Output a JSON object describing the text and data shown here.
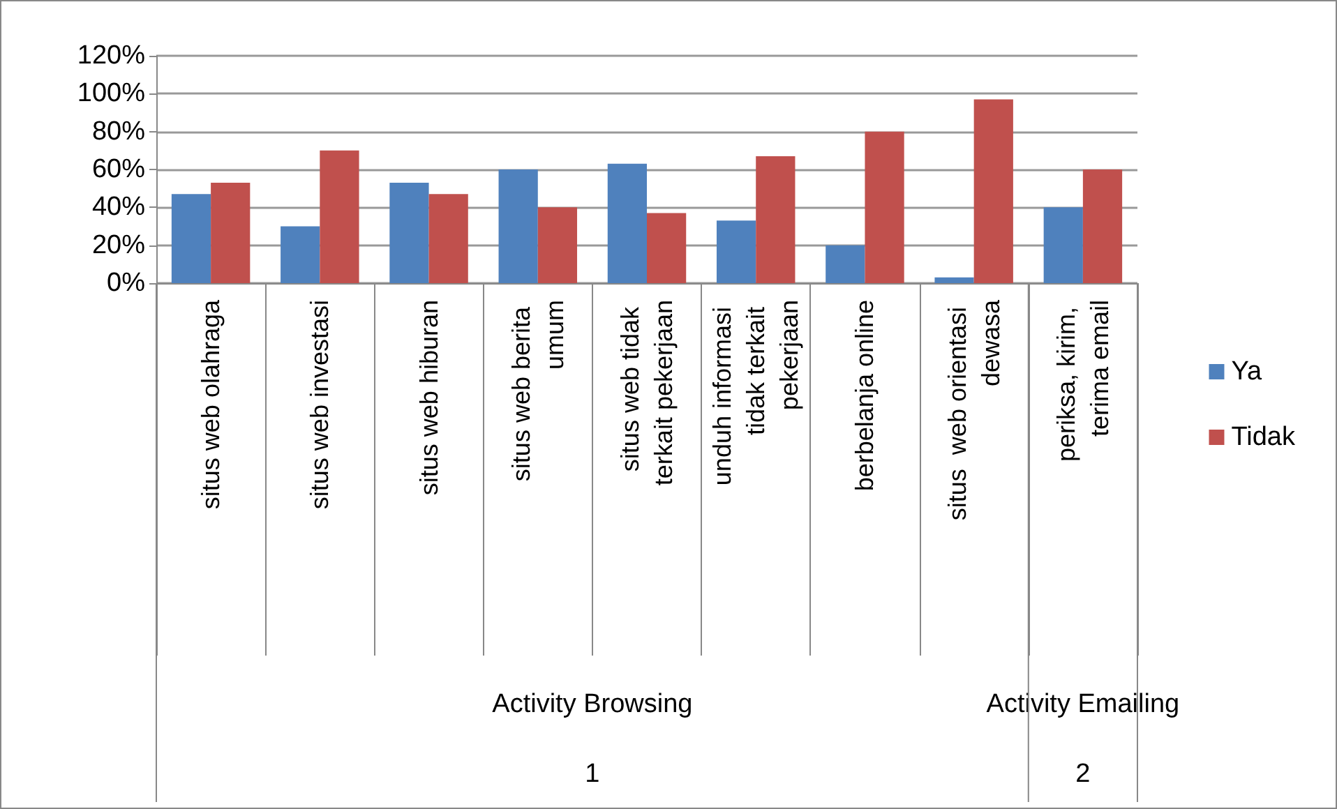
{
  "chart_data": {
    "type": "bar",
    "categories": [
      "situs web olahraga",
      "situs web investasi",
      "situs web hiburan",
      "situs web berita umum",
      "situs web tidak terkait pekerjaan",
      "unduh informasi tidak terkait pekerjaan",
      "berbelanja online",
      "situs  web orientasi dewasa",
      "periksa, kirim, terima email"
    ],
    "series": [
      {
        "name": "Ya",
        "color": "#4f81bd",
        "values": [
          47,
          30,
          53,
          60,
          63,
          33,
          20,
          3,
          40
        ]
      },
      {
        "name": "Tidak",
        "color": "#c0504d",
        "values": [
          53,
          70,
          47,
          40,
          37,
          67,
          80,
          97,
          60
        ]
      }
    ],
    "ylim": [
      0,
      120
    ],
    "yticks": [
      {
        "value": 0,
        "label": "0%"
      },
      {
        "value": 20,
        "label": "20%"
      },
      {
        "value": 40,
        "label": "40%"
      },
      {
        "value": 60,
        "label": "60%"
      },
      {
        "value": 80,
        "label": "80%"
      },
      {
        "value": 100,
        "label": "100%"
      },
      {
        "value": 120,
        "label": "120%"
      }
    ],
    "annotations": [
      "Activity Browsing",
      "Activity Emailing",
      "1",
      "2"
    ],
    "grid": "y",
    "legend": "right"
  }
}
